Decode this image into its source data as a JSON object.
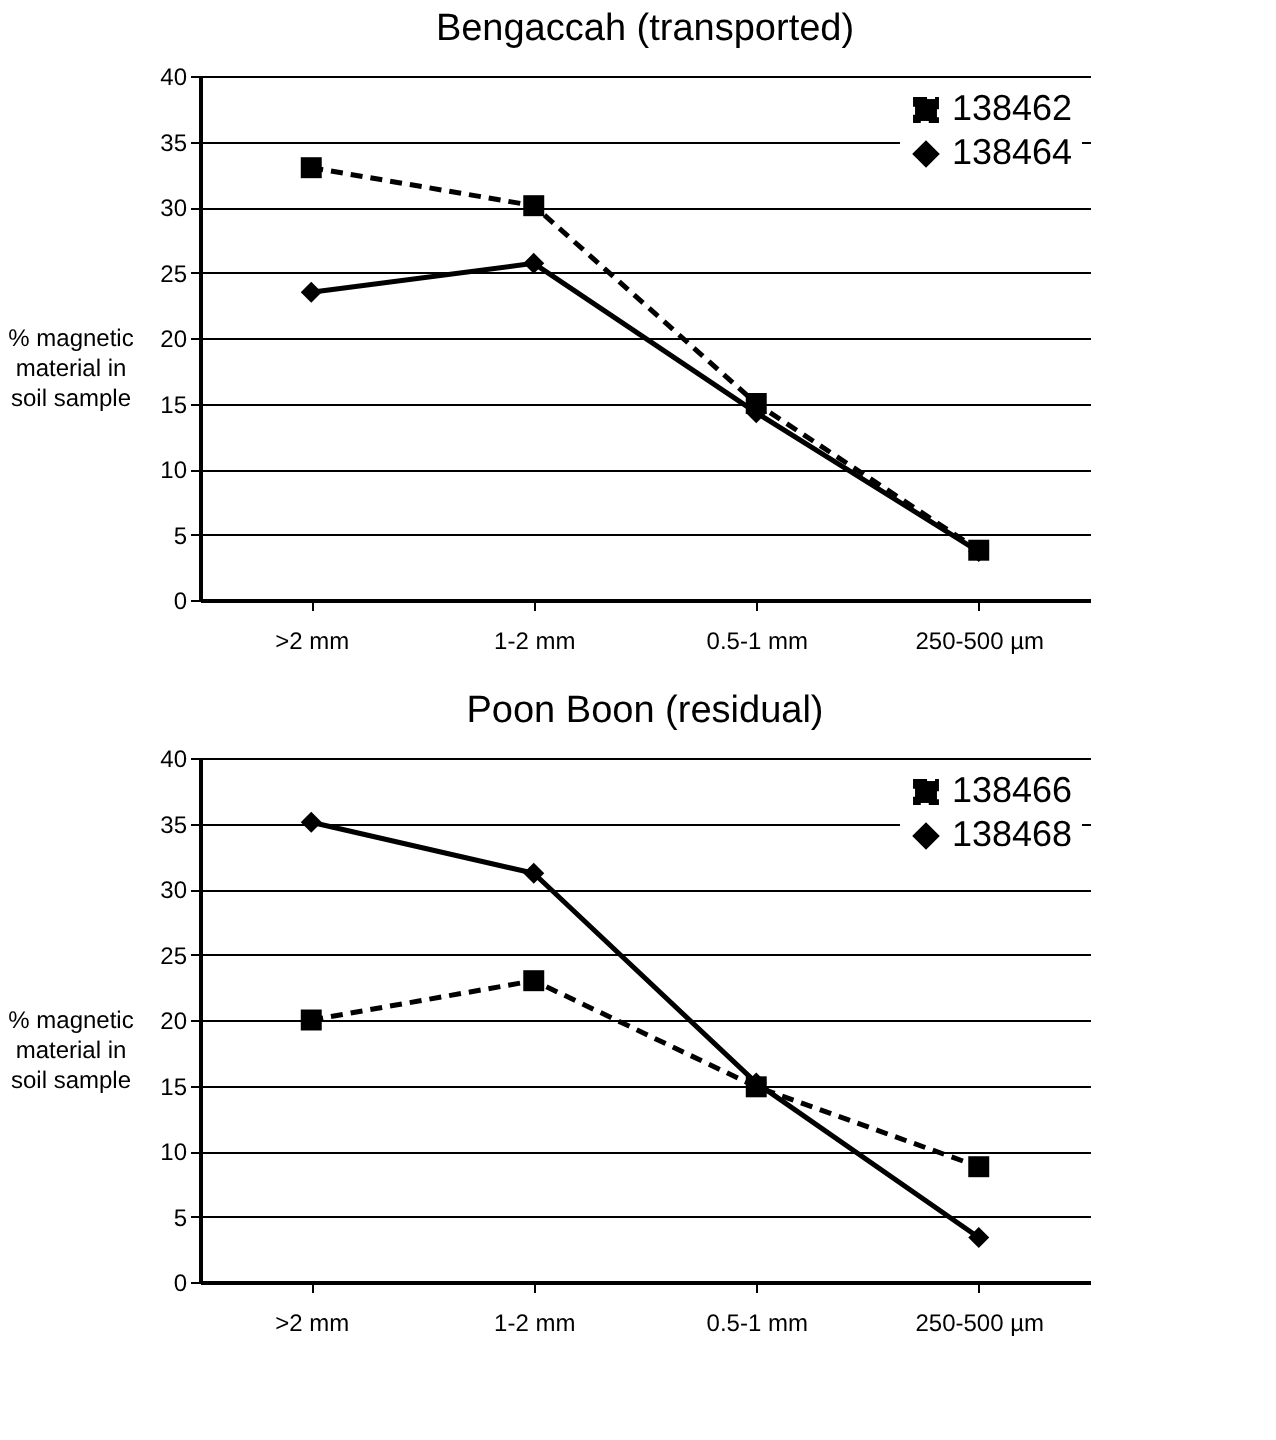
{
  "chart_data": [
    {
      "type": "line",
      "title": "Bengaccah (transported)",
      "ylabel": "% magnetic material in soil sample",
      "categories": [
        ">2 mm",
        "1-2 mm",
        "0.5-1 mm",
        "250-500 µm"
      ],
      "ylim": [
        0,
        40
      ],
      "yticks": [
        0,
        5,
        10,
        15,
        20,
        25,
        30,
        35,
        40
      ],
      "grid": "y",
      "legend": "top right",
      "series": [
        {
          "name": "138462",
          "color": "#000000",
          "marker": "square",
          "line_style": "dashed",
          "values": [
            33,
            30.1,
            15,
            3.8
          ]
        },
        {
          "name": "138464",
          "color": "#000000",
          "marker": "diamond",
          "line_style": "solid",
          "values": [
            23.5,
            25.7,
            14.3,
            3.7
          ]
        }
      ]
    },
    {
      "type": "line",
      "title": "Poon Boon (residual)",
      "ylabel": "% magnetic material in soil sample",
      "categories": [
        ">2 mm",
        "1-2 mm",
        "0.5-1 mm",
        "250-500 µm"
      ],
      "ylim": [
        0,
        40
      ],
      "yticks": [
        0,
        5,
        10,
        15,
        20,
        25,
        30,
        35,
        40
      ],
      "grid": "y",
      "legend": "top right",
      "series": [
        {
          "name": "138466",
          "color": "#000000",
          "marker": "square",
          "line_style": "dashed",
          "values": [
            20,
            23,
            14.9,
            8.8
          ]
        },
        {
          "name": "138468",
          "color": "#000000",
          "marker": "diamond",
          "line_style": "solid",
          "values": [
            35.1,
            31.2,
            15.2,
            3.4
          ]
        }
      ]
    }
  ]
}
